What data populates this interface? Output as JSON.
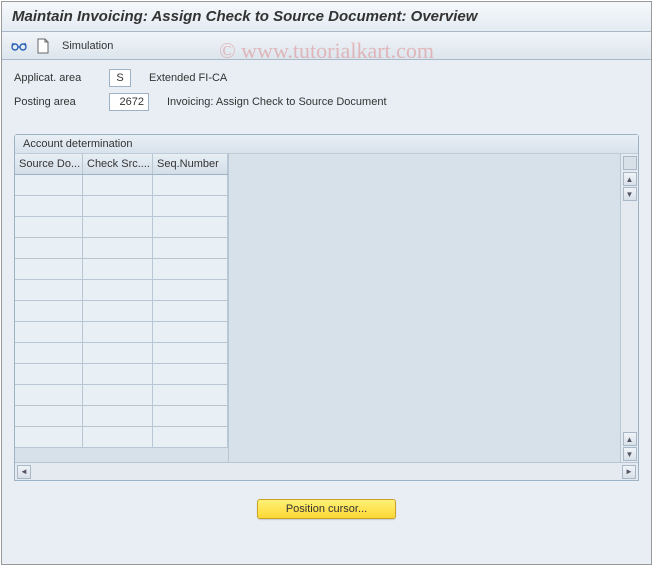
{
  "title": "Maintain Invoicing: Assign Check to Source Document: Overview",
  "toolbar": {
    "simulation_label": "Simulation"
  },
  "form": {
    "applicat_area_label": "Applicat. area",
    "applicat_area_value": "S",
    "applicat_area_desc": "Extended FI-CA",
    "posting_area_label": "Posting area",
    "posting_area_value": "2672",
    "posting_area_desc": "Invoicing: Assign Check to Source Document"
  },
  "panel": {
    "title": "Account determination",
    "columns": [
      "Source Do...",
      "Check Src....",
      "Seq.Number"
    ],
    "row_count": 13
  },
  "button": {
    "position_cursor": "Position cursor..."
  },
  "watermark": "© www.tutorialkart.com",
  "colors": {
    "bg": "#e8eef4",
    "panel_bg": "#dce6ef",
    "border": "#9db2c4",
    "button_bg": "#fdd835"
  }
}
